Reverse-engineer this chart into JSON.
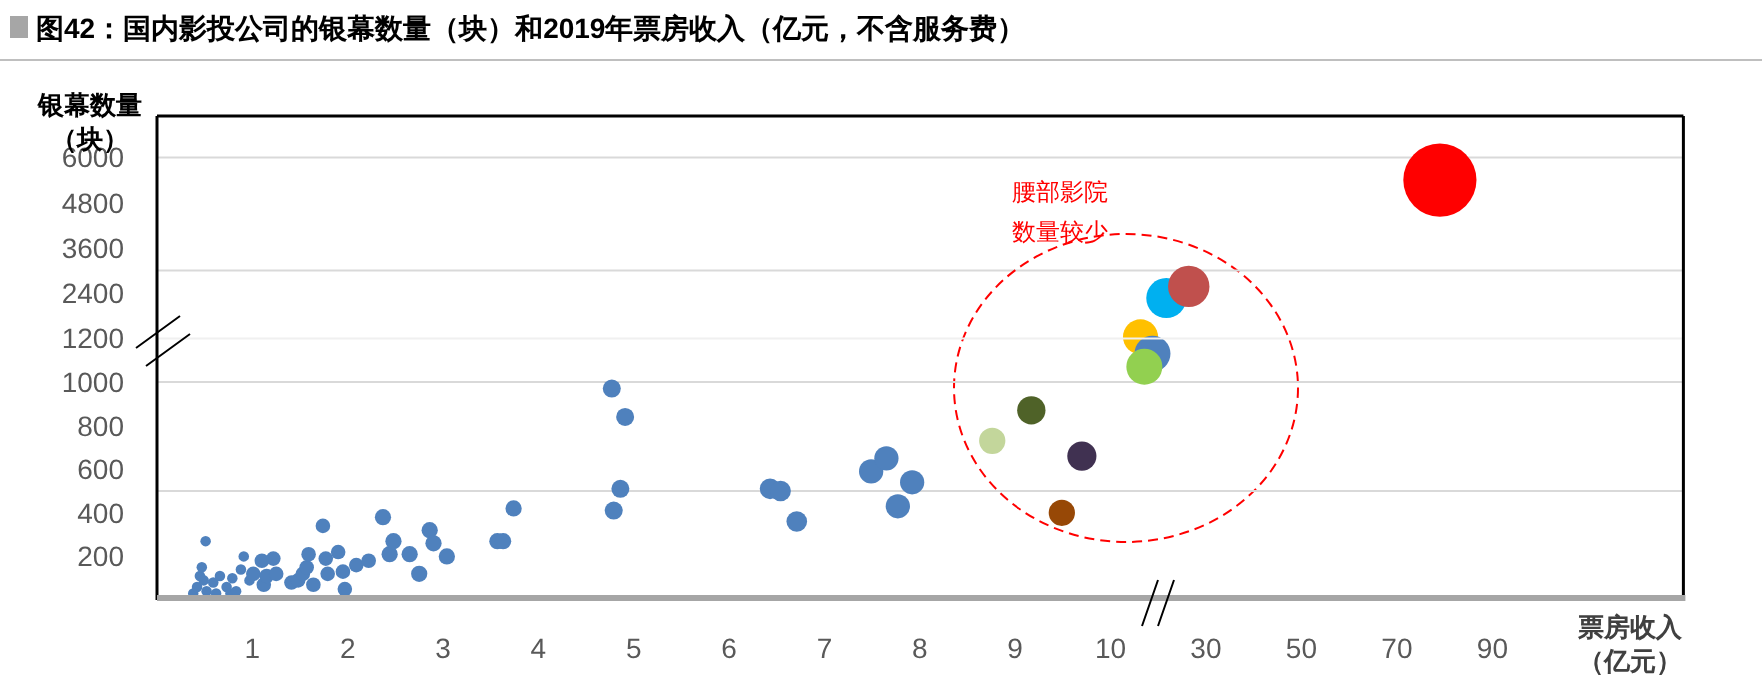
{
  "chart_data": [
    {
      "type": "bubble",
      "title": "图42：国内影投公司的银幕数量（块）和2019年票房收入（亿元，不含服务费）",
      "ylabel": "银幕数量（块）",
      "annotations": [
        "腰部影院数量较少"
      ],
      "xlim": [
        0,
        10.1
      ],
      "ylim": [
        1200,
        7100
      ],
      "yticks": [
        2400,
        3600,
        4800,
        6000
      ],
      "tick_labels": "y",
      "ref_lines": [
        {
          "axis": "y",
          "value": 3000,
          "color": "#d9d9d9"
        },
        {
          "axis": "y",
          "value": 6000,
          "color": "#d9d9d9"
        }
      ]
    },
    {
      "type": "bubble",
      "xlim": [
        12,
        130
      ],
      "ylim": [
        1200,
        7100
      ],
      "tick_labels": false,
      "ref_lines": [
        {
          "axis": "y",
          "value": 3000,
          "color": "#d9d9d9"
        },
        {
          "axis": "y",
          "value": 6000,
          "color": "#d9d9d9"
        }
      ],
      "x": [
        16.3,
        21.7,
        26.4,
        79
      ],
      "values": [
        1240,
        2270,
        2580,
        5400
      ],
      "sizes": [
        0.23,
        0.3,
        0.32,
        1
      ],
      "colors": [
        "#ffc000",
        "#00b0f0",
        "#c0504d",
        "#ff0000"
      ]
    },
    {
      "type": "bubble",
      "xlim": [
        0,
        10.1
      ],
      "ylim": [
        0,
        1200
      ],
      "xticks": [
        1,
        2,
        3,
        4,
        5,
        6,
        7,
        8,
        9,
        10
      ],
      "yticks": [
        200,
        400,
        600,
        800,
        1000,
        1200
      ],
      "ref_lines": [
        {
          "axis": "y",
          "value": 500,
          "color": "#d9d9d9"
        },
        {
          "axis": "y",
          "value": 1000,
          "color": "#d9d9d9"
        }
      ],
      "x": [
        0.38,
        0.42,
        0.45,
        0.47,
        0.49,
        0.51,
        0.52,
        0.59,
        0.62,
        0.66,
        0.73,
        0.77,
        0.79,
        0.83,
        0.88,
        0.91,
        0.97,
        1.01,
        1.1,
        1.12,
        1.15,
        1.22,
        1.25,
        1.41,
        1.48,
        1.53,
        1.57,
        1.59,
        1.64,
        1.74,
        1.77,
        1.79,
        1.9,
        1.95,
        1.97,
        2.09,
        2.22,
        2.37,
        2.44,
        2.48,
        2.65,
        2.75,
        2.86,
        2.9,
        3.04,
        3.57,
        3.63,
        3.74,
        4.77,
        4.79,
        4.86,
        4.91,
        6.43,
        6.54,
        6.71,
        7.49,
        7.65,
        7.77,
        7.92,
        8.76,
        9.17,
        9.49,
        9.7
      ],
      "values": [
        30,
        60,
        110,
        150,
        90,
        270,
        40,
        80,
        30,
        110,
        60,
        30,
        100,
        40,
        140,
        200,
        90,
        120,
        180,
        70,
        110,
        190,
        120,
        80,
        90,
        120,
        150,
        210,
        70,
        340,
        190,
        120,
        220,
        130,
        50,
        160,
        180,
        380,
        210,
        270,
        210,
        120,
        320,
        260,
        200,
        270,
        270,
        420,
        970,
        410,
        510,
        840,
        510,
        500,
        360,
        590,
        650,
        430,
        540,
        730,
        870,
        400,
        660
      ],
      "sizes": [
        0.13,
        0.13,
        0.13,
        0.13,
        0.13,
        0.13,
        0.13,
        0.13,
        0.13,
        0.13,
        0.13,
        0.13,
        0.13,
        0.13,
        0.13,
        0.13,
        0.13,
        0.25,
        0.25,
        0.25,
        0.25,
        0.25,
        0.25,
        0.25,
        0.25,
        0.25,
        0.25,
        0.25,
        0.25,
        0.25,
        0.25,
        0.25,
        0.25,
        0.25,
        0.25,
        0.25,
        0.25,
        0.31,
        0.31,
        0.31,
        0.31,
        0.31,
        0.31,
        0.31,
        0.31,
        0.31,
        0.31,
        0.31,
        0.38,
        0.38,
        0.38,
        0.38,
        0.5,
        0.5,
        0.5,
        0.69,
        0.69,
        0.69,
        0.69,
        0.81,
        0.94,
        0.81,
        1
      ],
      "colors": [
        "#4f81bd",
        "#4f81bd",
        "#4f81bd",
        "#4f81bd",
        "#4f81bd",
        "#4f81bd",
        "#4f81bd",
        "#4f81bd",
        "#4f81bd",
        "#4f81bd",
        "#4f81bd",
        "#4f81bd",
        "#4f81bd",
        "#4f81bd",
        "#4f81bd",
        "#4f81bd",
        "#4f81bd",
        "#4f81bd",
        "#4f81bd",
        "#4f81bd",
        "#4f81bd",
        "#4f81bd",
        "#4f81bd",
        "#4f81bd",
        "#4f81bd",
        "#4f81bd",
        "#4f81bd",
        "#4f81bd",
        "#4f81bd",
        "#4f81bd",
        "#4f81bd",
        "#4f81bd",
        "#4f81bd",
        "#4f81bd",
        "#4f81bd",
        "#4f81bd",
        "#4f81bd",
        "#4f81bd",
        "#4f81bd",
        "#4f81bd",
        "#4f81bd",
        "#4f81bd",
        "#4f81bd",
        "#4f81bd",
        "#4f81bd",
        "#4f81bd",
        "#4f81bd",
        "#4f81bd",
        "#4f81bd",
        "#4f81bd",
        "#4f81bd",
        "#4f81bd",
        "#4f81bd",
        "#4f81bd",
        "#4f81bd",
        "#4f81bd",
        "#4f81bd",
        "#4f81bd",
        "#4f81bd",
        "#c3d69b",
        "#4f6228",
        "#974806",
        "#403151"
      ]
    },
    {
      "type": "bubble",
      "xlabel": "票房收入（亿元）",
      "xlim": [
        12,
        130
      ],
      "ylim": [
        0,
        1200
      ],
      "xticks": [
        30,
        50,
        70,
        90
      ],
      "tick_labels": "x",
      "ref_lines": [
        {
          "axis": "y",
          "value": 500,
          "color": "#d9d9d9"
        },
        {
          "axis": "y",
          "value": 1000,
          "color": "#d9d9d9"
        }
      ],
      "x": [
        18.8,
        17.1
      ],
      "values": [
        1130,
        1070
      ],
      "sizes": [
        1,
        1
      ],
      "colors": [
        "#4f81bd",
        "#92d050"
      ]
    }
  ]
}
